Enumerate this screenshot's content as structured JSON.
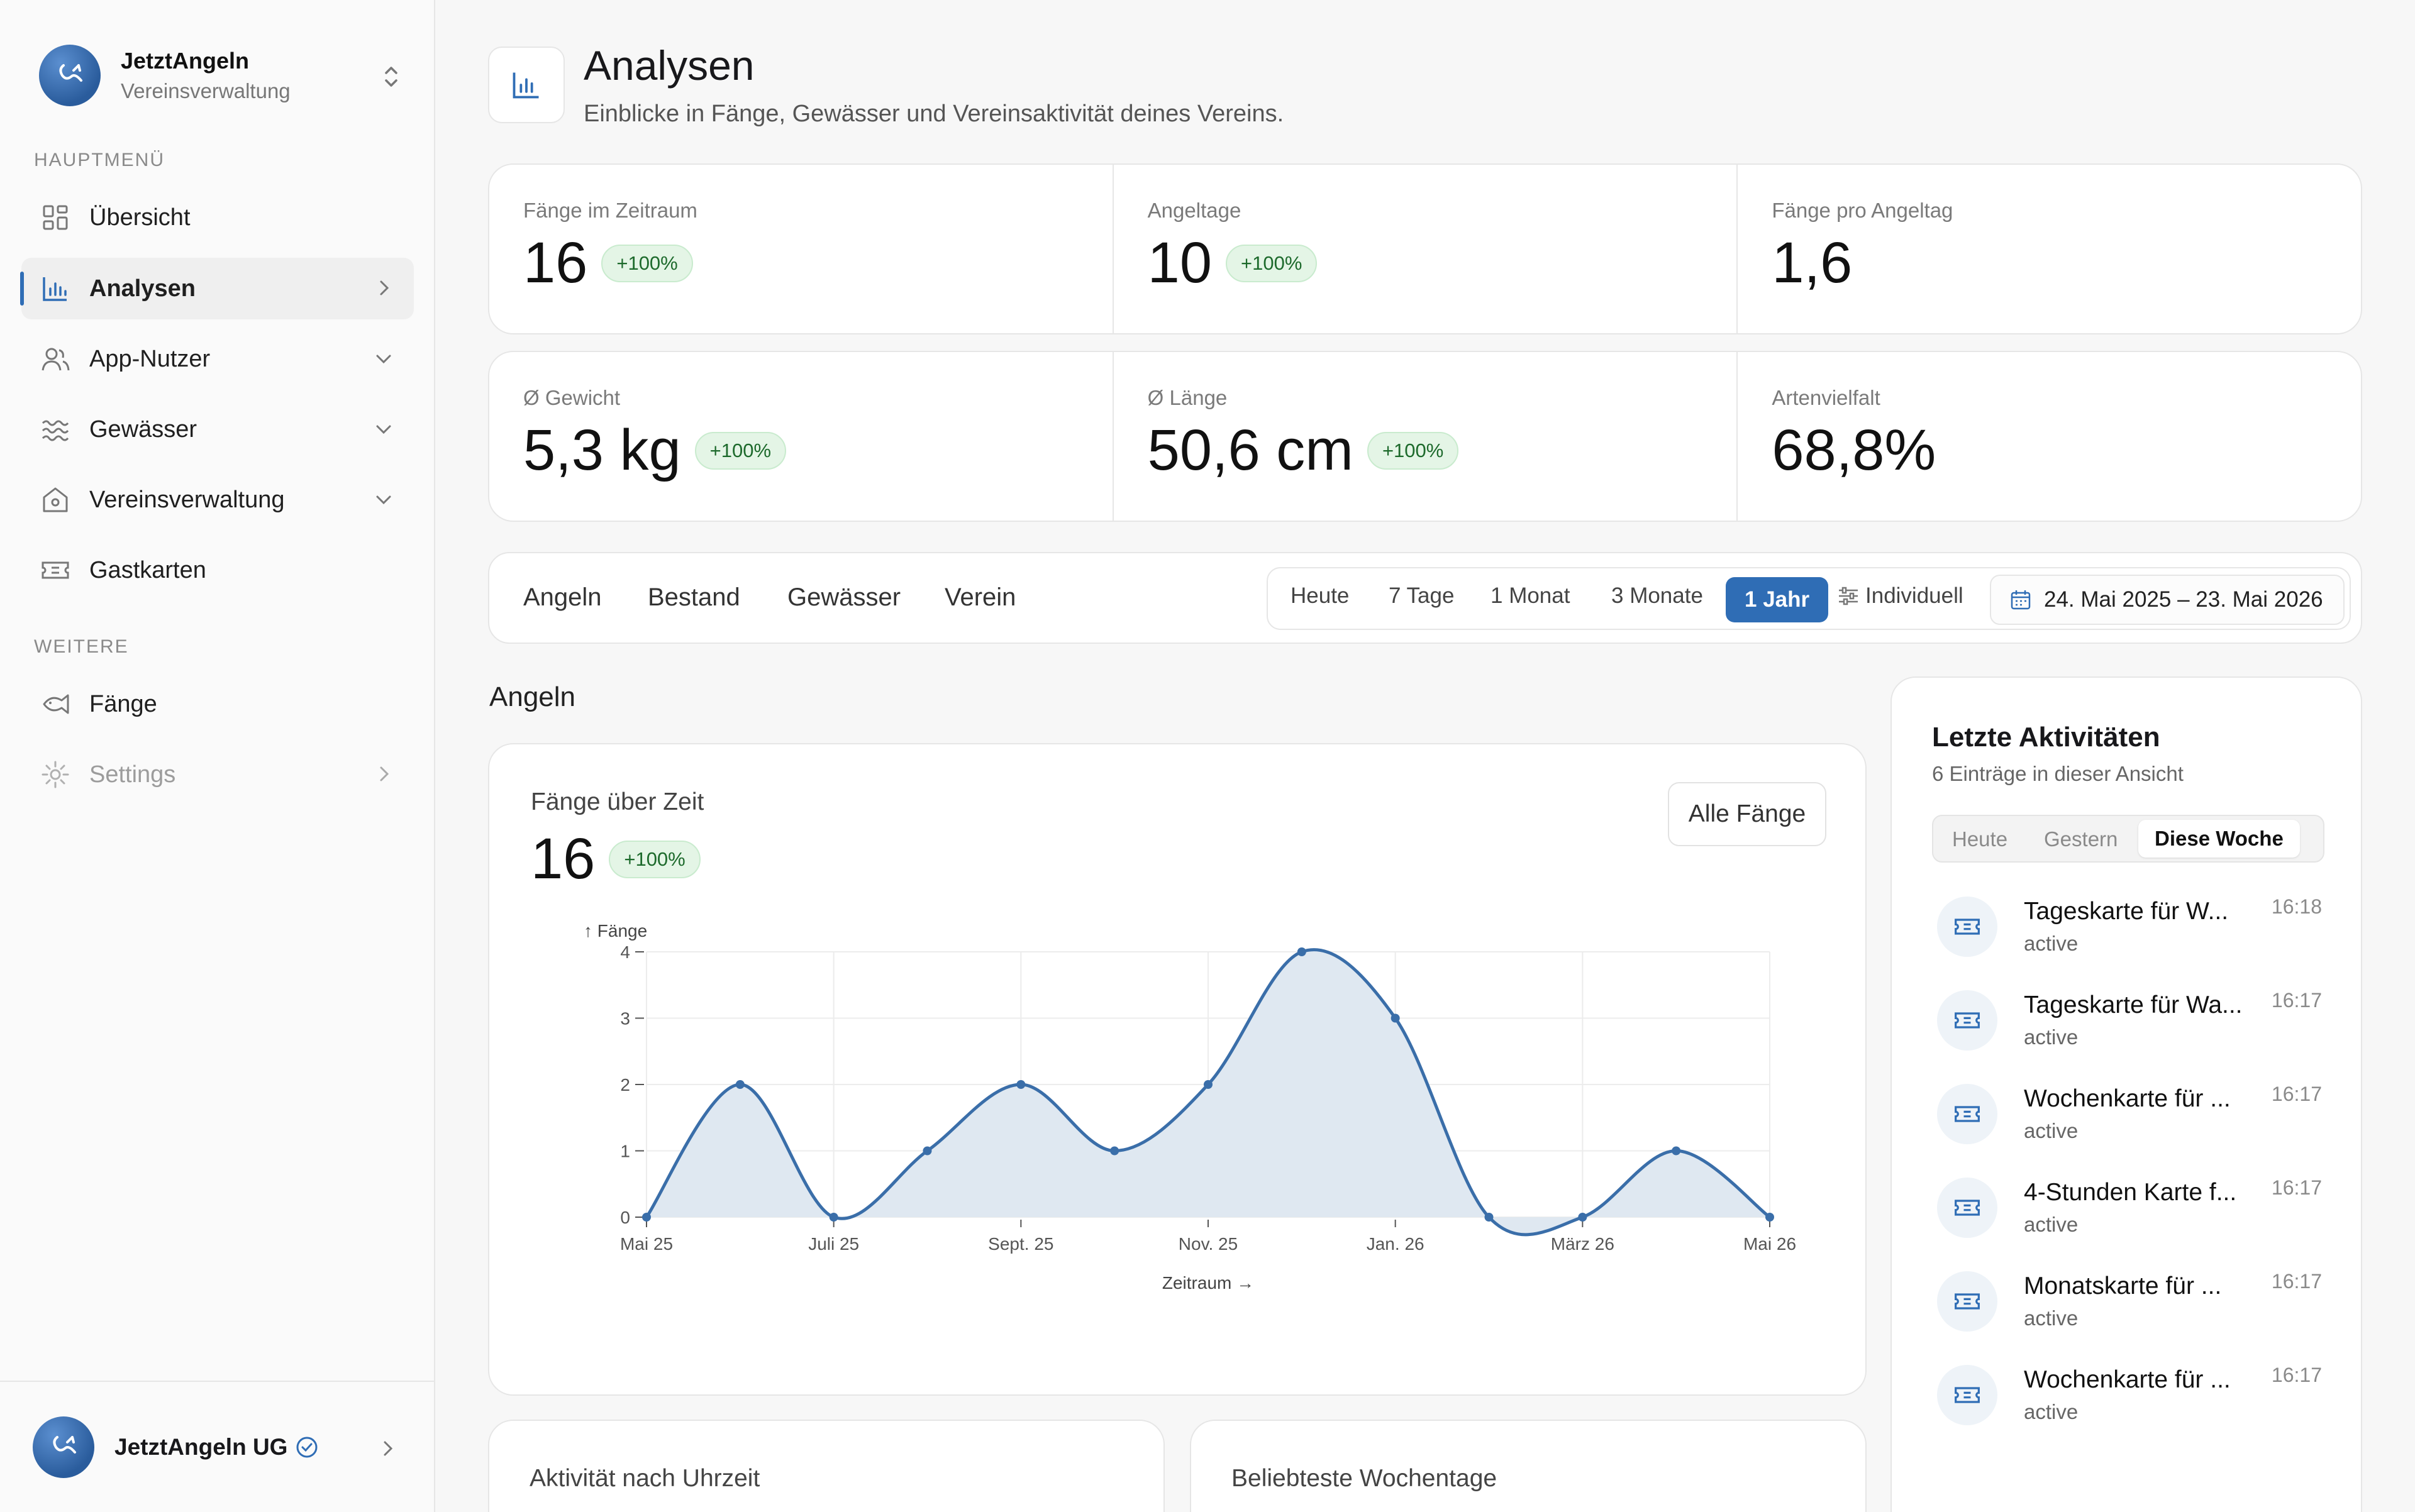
{
  "sidebar": {
    "brand_name": "JetztAngeln",
    "brand_sub": "Vereinsverwaltung",
    "main_section": "HAUPTMENÜ",
    "main_items": [
      {
        "label": "Übersicht",
        "icon": "grid-icon"
      },
      {
        "label": "Analysen",
        "icon": "bar-chart-icon",
        "active": true
      },
      {
        "label": "App-Nutzer",
        "icon": "users-icon"
      },
      {
        "label": "Gewässer",
        "icon": "waves-icon"
      },
      {
        "label": "Vereinsverwaltung",
        "icon": "home-icon"
      },
      {
        "label": "Gastkarten",
        "icon": "ticket-icon"
      }
    ],
    "more_section": "WEITERE",
    "more_items": [
      {
        "label": "Fänge",
        "icon": "fish-icon"
      },
      {
        "label": "Settings",
        "icon": "gear-icon"
      }
    ],
    "footer_user": "JetztAngeln UG"
  },
  "header": {
    "title": "Analysen",
    "subtitle": "Einblicke in Fänge, Gewässer und Vereinsaktivität deines Vereins."
  },
  "kpis": [
    {
      "label": "Fänge im Zeitraum",
      "value": "16",
      "badge": "+100%"
    },
    {
      "label": "Angeltage",
      "value": "10",
      "badge": "+100%"
    },
    {
      "label": "Fänge pro Angeltag",
      "value": "1,6",
      "badge": null
    },
    {
      "label": "Ø Gewicht",
      "value": "5,3 kg",
      "badge": "+100%"
    },
    {
      "label": "Ø Länge",
      "value": "50,6 cm",
      "badge": "+100%"
    },
    {
      "label": "Artenvielfalt",
      "value": "68,8%",
      "badge": null
    }
  ],
  "tabs": [
    "Angeln",
    "Bestand",
    "Gewässer",
    "Verein"
  ],
  "ranges": [
    "Heute",
    "7 Tage",
    "1 Monat",
    "3 Monate",
    "1 Jahr",
    "Individuell"
  ],
  "selected_range": "1 Jahr",
  "date_range": "24. Mai 2025 – 23. Mai 2026",
  "section_title": "Angeln",
  "chart_card": {
    "title": "Fänge über Zeit",
    "value": "16",
    "badge": "+100%",
    "button": "Alle Fänge"
  },
  "chart_data": {
    "type": "area",
    "ylabel": "↑ Fänge",
    "xlabel": "Zeitraum →",
    "ylim": [
      0,
      4
    ],
    "yticks": [
      "0",
      "1",
      "2",
      "3",
      "4"
    ],
    "xticks": [
      "Mai 25",
      "Juli 25",
      "Sept. 25",
      "Nov. 25",
      "Jan. 26",
      "März 26",
      "Mai 26"
    ],
    "x": [
      "Mai 25",
      "Juni 25",
      "Juli 25",
      "Aug. 25",
      "Sept. 25",
      "Okt. 25",
      "Nov. 25",
      "Dez. 25",
      "Jan. 26",
      "Feb. 26",
      "März 26",
      "Apr. 26",
      "Mai 26"
    ],
    "values": [
      0,
      2,
      0,
      1,
      2,
      1,
      2,
      4,
      3,
      0,
      0,
      1,
      0
    ],
    "color": "#3a6ea9",
    "fill": "#dfe8f1",
    "grid": true
  },
  "small_cards": [
    "Aktivität nach Uhrzeit",
    "Beliebteste Wochentage"
  ],
  "activities": {
    "title": "Letzte Aktivitäten",
    "subtitle": "6 Einträge in dieser Ansicht",
    "filters": [
      "Heute",
      "Gestern",
      "Diese Woche"
    ],
    "selected_filter": "Diese Woche",
    "items": [
      {
        "name": "Tageskarte für W...",
        "status": "active",
        "time": "16:18"
      },
      {
        "name": "Tageskarte für Wa...",
        "status": "active",
        "time": "16:17"
      },
      {
        "name": "Wochenkarte für ...",
        "status": "active",
        "time": "16:17"
      },
      {
        "name": "4-Stunden Karte f...",
        "status": "active",
        "time": "16:17"
      },
      {
        "name": "Monatskarte für ...",
        "status": "active",
        "time": "16:17"
      },
      {
        "name": "Wochenkarte für ...",
        "status": "active",
        "time": "16:17"
      }
    ]
  },
  "colors": {
    "accent": "#2f6db5",
    "badge_bg": "#e4f5e6",
    "badge_text": "#1d6a2c"
  }
}
